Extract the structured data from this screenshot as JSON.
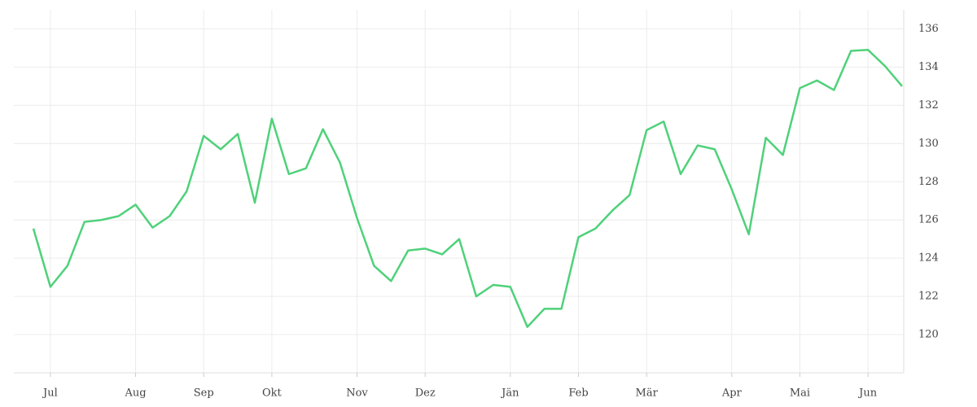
{
  "chart_data": {
    "type": "line",
    "categories": [
      null,
      "Jul",
      null,
      null,
      null,
      null,
      "Aug",
      null,
      null,
      null,
      "Sep",
      null,
      null,
      null,
      "Okt",
      null,
      null,
      null,
      null,
      "Nov",
      null,
      null,
      null,
      "Dez",
      null,
      null,
      null,
      null,
      "Jän",
      null,
      null,
      null,
      "Feb",
      null,
      null,
      null,
      "Mär",
      null,
      null,
      null,
      null,
      "Apr",
      null,
      null,
      null,
      "Mai",
      null,
      null,
      null,
      "Jun",
      null,
      null
    ],
    "series": [
      {
        "color": "#4fd17a",
        "values": [
          125.55,
          122.5,
          123.6,
          125.9,
          126.0,
          126.2,
          126.8,
          125.6,
          126.2,
          127.5,
          130.4,
          129.7,
          130.5,
          126.9,
          131.3,
          128.4,
          128.7,
          130.75,
          129.0,
          126.1,
          123.6,
          122.8,
          124.4,
          124.5,
          124.2,
          125.0,
          122.0,
          122.6,
          122.5,
          120.4,
          121.35,
          121.35,
          125.1,
          125.55,
          126.5,
          127.3,
          130.7,
          131.15,
          128.4,
          129.9,
          129.7,
          127.6,
          125.25,
          130.3,
          129.4,
          132.9,
          133.3,
          132.8,
          134.85,
          134.9,
          134.05,
          133.0
        ]
      }
    ],
    "ylim": [
      118,
      137
    ],
    "yticks": [
      120,
      122,
      124,
      126,
      128,
      130,
      132,
      134,
      136
    ],
    "grid": true
  }
}
